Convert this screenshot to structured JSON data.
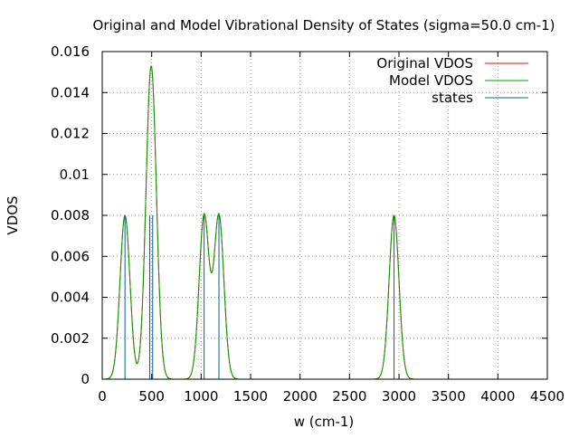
{
  "chart_data": {
    "type": "line",
    "title": "Original and Model Vibrational Density of States (sigma=50.0 cm-1)",
    "xlabel": "w (cm-1)",
    "ylabel": "VDOS",
    "xlim": [
      0,
      4500
    ],
    "ylim": [
      0,
      0.016
    ],
    "x_ticks": [
      0,
      500,
      1000,
      1500,
      2000,
      2500,
      3000,
      3500,
      4000,
      4500
    ],
    "y_ticks": [
      0,
      0.002,
      0.004,
      0.006,
      0.008,
      0.01,
      0.012,
      0.014,
      0.016
    ],
    "x_tick_labels": [
      "0",
      "500",
      "1000",
      "1500",
      "2000",
      "2500",
      "3000",
      "3500",
      "4000",
      "4500"
    ],
    "y_tick_labels": [
      "0",
      "0.002",
      "0.004",
      "0.006",
      "0.008",
      "0.01",
      "0.012",
      "0.014",
      "0.016"
    ],
    "grid": true,
    "legend_position": "top-right",
    "sigma": 50.0,
    "series": [
      {
        "name": "Original VDOS",
        "color": "#ff0000",
        "style": "line",
        "peaks": [
          {
            "center": 230,
            "amplitude": 0.008
          },
          {
            "center": 480,
            "amplitude": 0.008
          },
          {
            "center": 510,
            "amplitude": 0.008
          },
          {
            "center": 1030,
            "amplitude": 0.008
          },
          {
            "center": 1180,
            "amplitude": 0.008
          },
          {
            "center": 2950,
            "amplitude": 0.008
          }
        ]
      },
      {
        "name": "Model VDOS",
        "color": "#00a000",
        "style": "line",
        "peaks": [
          {
            "center": 230,
            "amplitude": 0.008
          },
          {
            "center": 480,
            "amplitude": 0.008
          },
          {
            "center": 510,
            "amplitude": 0.008
          },
          {
            "center": 1030,
            "amplitude": 0.008
          },
          {
            "center": 1180,
            "amplitude": 0.008
          },
          {
            "center": 2950,
            "amplitude": 0.008
          }
        ]
      },
      {
        "name": "states",
        "color": "#0060ad",
        "style": "impulses",
        "points": [
          {
            "x": 230,
            "y": 0.008
          },
          {
            "x": 480,
            "y": 0.008
          },
          {
            "x": 510,
            "y": 0.008
          },
          {
            "x": 1030,
            "y": 0.008
          },
          {
            "x": 1180,
            "y": 0.008
          },
          {
            "x": 2950,
            "y": 0.008
          }
        ]
      }
    ]
  }
}
